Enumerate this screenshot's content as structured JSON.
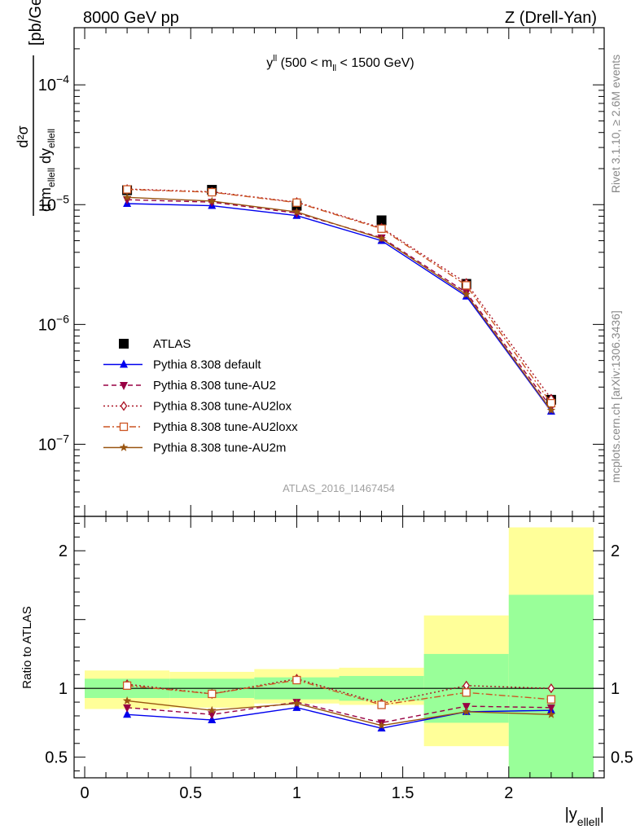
{
  "header": {
    "left": "8000 GeV pp",
    "right": "Z (Drell-Yan)"
  },
  "side_labels": {
    "rivet": "Rivet 3.1.10, ≥ 2.6M events",
    "mcplots": "mcplots.cern.ch [arXiv:1306.3436]"
  },
  "watermark": "ATLAS_2016_I1467454",
  "colors": {
    "atlas": "#000000",
    "default": "#0000ee",
    "au2": "#990044",
    "au2lox": "#aa1122",
    "au2loxx": "#cc5522",
    "au2m": "#995511",
    "band_stat": "#99ff99",
    "band_tot": "#ffff99"
  },
  "chart_data": [
    {
      "type": "scatter",
      "panel": "main",
      "title": "y^{ll} (500 < m_{ll} < 1500 GeV)",
      "title_parts": {
        "pre": "y",
        "sup": "ll",
        "mid": " (500 < m",
        "sub": "ll",
        "post": " < 1500 GeV)"
      },
      "ylabel_parts": {
        "num": "d²σ",
        "den1": "d m",
        "den1_sub": "ellell",
        "den2": " dy",
        "den2_sub": "ellell",
        "unit": "[pb/GeV]"
      },
      "yscale": "log",
      "ylim": [
        2.5e-08,
        0.0003
      ],
      "xlim": [
        -0.05,
        2.45
      ],
      "yticks": [
        {
          "value": 1e-07,
          "base": "10",
          "exp": "−7"
        },
        {
          "value": 1e-06,
          "base": "10",
          "exp": "−6"
        },
        {
          "value": 1e-05,
          "base": "10",
          "exp": "−5"
        },
        {
          "value": 0.0001,
          "base": "10",
          "exp": "−4"
        }
      ],
      "legend_position": "lower-left",
      "x": [
        0.2,
        0.6,
        1.0,
        1.4,
        1.8,
        2.2
      ],
      "series": [
        {
          "key": "atlas",
          "name": "ATLAS",
          "marker": "square",
          "line": "none",
          "values": [
            1.32e-05,
            1.33e-05,
            9.8e-06,
            7.4e-06,
            2.18e-06,
            2.35e-07
          ]
        },
        {
          "key": "default",
          "name": "Pythia 8.308 default",
          "marker": "triangle-up",
          "line": "solid",
          "values": [
            1.02e-05,
            9.8e-06,
            8.1e-06,
            5e-06,
            1.72e-06,
            1.88e-07
          ]
        },
        {
          "key": "au2",
          "name": "Pythia 8.308 tune-AU2",
          "marker": "triangle-down",
          "line": "dash",
          "values": [
            1.1e-05,
            1.05e-05,
            8.5e-06,
            5.3e-06,
            1.85e-06,
            2.03e-07
          ]
        },
        {
          "key": "au2lox",
          "name": "Pythia 8.308 tune-AU2lox",
          "marker": "diamond-open",
          "line": "dot",
          "values": [
            1.35e-05,
            1.28e-05,
            1.05e-05,
            6.4e-06,
            2.22e-06,
            2.4e-07
          ]
        },
        {
          "key": "au2loxx",
          "name": "Pythia 8.308 tune-AU2loxx",
          "marker": "square-open",
          "line": "dashdot",
          "values": [
            1.34e-05,
            1.27e-05,
            1.04e-05,
            6.3e-06,
            2.12e-06,
            2.2e-07
          ]
        },
        {
          "key": "au2m",
          "name": "Pythia 8.308 tune-AU2m",
          "marker": "star",
          "line": "solid",
          "values": [
            1.15e-05,
            1.07e-05,
            8.7e-06,
            5.2e-06,
            1.78e-06,
            1.92e-07
          ]
        }
      ]
    },
    {
      "type": "scatter",
      "panel": "ratio",
      "ylabel": "Ratio to ATLAS",
      "xlabel_parts": {
        "pre": "|y",
        "sub": "ellell",
        "post": "|"
      },
      "ylim": [
        0.35,
        2.25
      ],
      "xlim": [
        -0.05,
        2.45
      ],
      "yticks": [
        0.5,
        1,
        2
      ],
      "ytick_labels": [
        "0.5",
        "1",
        "2"
      ],
      "xticks": [
        0,
        0.5,
        1,
        1.5,
        2
      ],
      "xtick_labels": [
        "0",
        "0.5",
        "1",
        "1.5",
        "2"
      ],
      "reference_line": 1,
      "bins": [
        [
          0.0,
          0.4
        ],
        [
          0.4,
          0.8
        ],
        [
          0.8,
          1.2
        ],
        [
          1.2,
          1.6
        ],
        [
          1.6,
          2.0
        ],
        [
          2.0,
          2.4
        ]
      ],
      "band_total": [
        [
          0.85,
          1.13
        ],
        [
          0.86,
          1.12
        ],
        [
          0.89,
          1.14
        ],
        [
          0.88,
          1.15
        ],
        [
          0.58,
          1.53
        ],
        [
          0.35,
          2.17
        ]
      ],
      "band_stat": [
        [
          0.93,
          1.07
        ],
        [
          0.93,
          1.07
        ],
        [
          0.92,
          1.08
        ],
        [
          0.91,
          1.09
        ],
        [
          0.75,
          1.25
        ],
        [
          0.35,
          1.68
        ]
      ],
      "x": [
        0.2,
        0.6,
        1.0,
        1.4,
        1.8,
        2.2
      ],
      "series": [
        {
          "key": "default",
          "marker": "triangle-up",
          "line": "solid",
          "values": [
            0.81,
            0.77,
            0.86,
            0.71,
            0.83,
            0.84
          ]
        },
        {
          "key": "au2",
          "marker": "triangle-down",
          "line": "dash",
          "values": [
            0.86,
            0.81,
            0.9,
            0.75,
            0.87,
            0.86
          ]
        },
        {
          "key": "au2lox",
          "marker": "diamond-open",
          "line": "dot",
          "values": [
            1.03,
            0.96,
            1.07,
            0.89,
            1.02,
            1.0
          ]
        },
        {
          "key": "au2loxx",
          "marker": "square-open",
          "line": "dashdot",
          "values": [
            1.02,
            0.96,
            1.06,
            0.88,
            0.97,
            0.92
          ]
        },
        {
          "key": "au2m",
          "marker": "star",
          "line": "solid",
          "values": [
            0.91,
            0.84,
            0.89,
            0.73,
            0.83,
            0.81
          ]
        }
      ]
    }
  ]
}
